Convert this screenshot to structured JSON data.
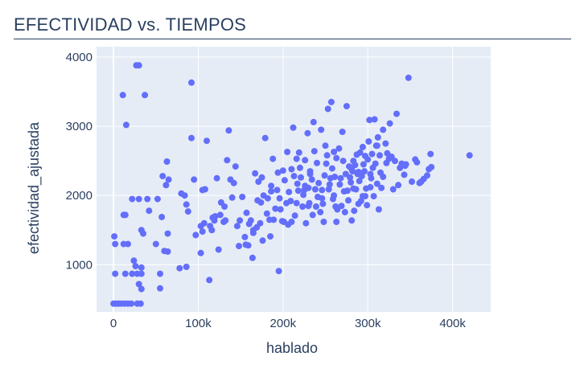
{
  "title": "EFECTIVIDAD vs. TIEMPOS",
  "colors": {
    "plot_bg": "#e5ecf6",
    "grid": "#ffffff",
    "marker": "#636efa",
    "text": "#2a3f5f"
  },
  "chart_data": {
    "type": "scatter",
    "xlabel": "hablado",
    "ylabel": "efectividad_ajustada",
    "xlim": [
      -20000,
      445000
    ],
    "ylim": [
      320,
      4150
    ],
    "xticks": [
      0,
      100000,
      200000,
      300000,
      400000
    ],
    "xtick_labels": [
      "0",
      "100k",
      "200k",
      "300k",
      "400k"
    ],
    "yticks": [
      1000,
      2000,
      3000,
      4000
    ],
    "ytick_labels": [
      "1000",
      "2000",
      "3000",
      "4000"
    ],
    "grid": true,
    "points": [
      [
        0,
        440
      ],
      [
        3000,
        440
      ],
      [
        6000,
        440
      ],
      [
        9000,
        440
      ],
      [
        13000,
        440
      ],
      [
        17000,
        440
      ],
      [
        21000,
        440
      ],
      [
        28000,
        440
      ],
      [
        32000,
        440
      ],
      [
        2000,
        870
      ],
      [
        14000,
        870
      ],
      [
        22000,
        870
      ],
      [
        28000,
        870
      ],
      [
        33000,
        870
      ],
      [
        33000,
        960
      ],
      [
        30000,
        720
      ],
      [
        33000,
        650
      ],
      [
        24000,
        1060
      ],
      [
        26000,
        980
      ],
      [
        2000,
        1300
      ],
      [
        12000,
        1300
      ],
      [
        17000,
        1300
      ],
      [
        1000,
        1410
      ],
      [
        12000,
        1720
      ],
      [
        14000,
        1720
      ],
      [
        22000,
        1950
      ],
      [
        30000,
        1950
      ],
      [
        33000,
        1500
      ],
      [
        35000,
        1450
      ],
      [
        52000,
        1950
      ],
      [
        50000,
        1300
      ],
      [
        55000,
        660
      ],
      [
        55000,
        870
      ],
      [
        57000,
        1690
      ],
      [
        60000,
        1200
      ],
      [
        64000,
        1190
      ],
      [
        62000,
        2150
      ],
      [
        58000,
        2280
      ],
      [
        65000,
        2230
      ],
      [
        63000,
        2490
      ],
      [
        64000,
        1450
      ],
      [
        78000,
        950
      ],
      [
        86000,
        970
      ],
      [
        80000,
        2030
      ],
      [
        84000,
        2000
      ],
      [
        86000,
        1870
      ],
      [
        92000,
        2830
      ],
      [
        95000,
        2230
      ],
      [
        97000,
        1430
      ],
      [
        103000,
        1170
      ],
      [
        105000,
        1480
      ],
      [
        107000,
        1600
      ],
      [
        105000,
        2080
      ],
      [
        108000,
        2090
      ],
      [
        110000,
        2790
      ],
      [
        113000,
        780
      ],
      [
        114000,
        1560
      ],
      [
        116000,
        1500
      ],
      [
        117000,
        1680
      ],
      [
        120000,
        1700
      ],
      [
        122000,
        2250
      ],
      [
        124000,
        1220
      ],
      [
        126000,
        1720
      ],
      [
        127000,
        1900
      ],
      [
        130000,
        1620
      ],
      [
        132000,
        1640
      ],
      [
        134000,
        2510
      ],
      [
        136000,
        2940
      ],
      [
        138000,
        2230
      ],
      [
        140000,
        1970
      ],
      [
        142000,
        2180
      ],
      [
        144000,
        2420
      ],
      [
        146000,
        1560
      ],
      [
        149000,
        1640
      ],
      [
        152000,
        1980
      ],
      [
        155000,
        1400
      ],
      [
        157000,
        1750
      ],
      [
        159000,
        1280
      ],
      [
        160000,
        1590
      ],
      [
        162000,
        1640
      ],
      [
        164000,
        1100
      ],
      [
        165000,
        1460
      ],
      [
        167000,
        2320
      ],
      [
        169000,
        1540
      ],
      [
        171000,
        2200
      ],
      [
        173000,
        1600
      ],
      [
        174000,
        1900
      ],
      [
        176000,
        1350
      ],
      [
        177000,
        2000
      ],
      [
        179000,
        2830
      ],
      [
        181000,
        1740
      ],
      [
        182000,
        1960
      ],
      [
        184000,
        1650
      ],
      [
        186000,
        2140
      ],
      [
        188000,
        2530
      ],
      [
        189000,
        1650
      ],
      [
        191000,
        1810
      ],
      [
        193000,
        2080
      ],
      [
        194000,
        2330
      ],
      [
        195000,
        910
      ],
      [
        196000,
        1960
      ],
      [
        197000,
        1800
      ],
      [
        199000,
        1630
      ],
      [
        200000,
        2360
      ],
      [
        201000,
        1620
      ],
      [
        202000,
        2220
      ],
      [
        204000,
        1890
      ],
      [
        205000,
        2630
      ],
      [
        206000,
        1580
      ],
      [
        207000,
        2050
      ],
      [
        209000,
        1920
      ],
      [
        210000,
        2380
      ],
      [
        212000,
        2980
      ],
      [
        213000,
        2280
      ],
      [
        214000,
        1710
      ],
      [
        216000,
        2530
      ],
      [
        217000,
        2170
      ],
      [
        218000,
        2070
      ],
      [
        219000,
        2620
      ],
      [
        220000,
        2400
      ],
      [
        221000,
        2260
      ],
      [
        223000,
        1840
      ],
      [
        224000,
        2010
      ],
      [
        225000,
        2080
      ],
      [
        226000,
        2510
      ],
      [
        227000,
        1600
      ],
      [
        229000,
        2900
      ],
      [
        230000,
        2110
      ],
      [
        231000,
        1890
      ],
      [
        232000,
        2350
      ],
      [
        234000,
        2230
      ],
      [
        235000,
        1720
      ],
      [
        236000,
        3060
      ],
      [
        237000,
        2640
      ],
      [
        238000,
        2090
      ],
      [
        239000,
        1840
      ],
      [
        240000,
        2470
      ],
      [
        241000,
        1980
      ],
      [
        242000,
        2180
      ],
      [
        244000,
        1760
      ],
      [
        245000,
        2950
      ],
      [
        246000,
        2080
      ],
      [
        247000,
        1880
      ],
      [
        248000,
        1620
      ],
      [
        249000,
        2290
      ],
      [
        250000,
        2720
      ],
      [
        251000,
        2460
      ],
      [
        252000,
        2580
      ],
      [
        253000,
        3250
      ],
      [
        254000,
        2090
      ],
      [
        256000,
        2250
      ],
      [
        257000,
        3350
      ],
      [
        258000,
        2390
      ],
      [
        259000,
        1950
      ],
      [
        260000,
        2630
      ],
      [
        261000,
        2270
      ],
      [
        262000,
        1840
      ],
      [
        263000,
        2540
      ],
      [
        264000,
        1800
      ],
      [
        266000,
        2680
      ],
      [
        267000,
        2160
      ],
      [
        268000,
        2250
      ],
      [
        269000,
        1850
      ],
      [
        270000,
        2920
      ],
      [
        271000,
        2500
      ],
      [
        272000,
        2060
      ],
      [
        273000,
        1760
      ],
      [
        274000,
        2310
      ],
      [
        275000,
        3290
      ],
      [
        276000,
        2070
      ],
      [
        277000,
        1930
      ],
      [
        278000,
        2420
      ],
      [
        279000,
        2260
      ],
      [
        280000,
        2190
      ],
      [
        281000,
        1640
      ],
      [
        282000,
        2350
      ],
      [
        283000,
        2500
      ],
      [
        284000,
        1780
      ],
      [
        285000,
        2440
      ],
      [
        286000,
        2090
      ],
      [
        287000,
        2590
      ],
      [
        288000,
        2310
      ],
      [
        289000,
        1880
      ],
      [
        290000,
        2210
      ],
      [
        291000,
        2620
      ],
      [
        292000,
        1920
      ],
      [
        293000,
        2280
      ],
      [
        294000,
        2700
      ],
      [
        295000,
        2450
      ],
      [
        296000,
        2350
      ],
      [
        297000,
        2570
      ],
      [
        298000,
        2100
      ],
      [
        299000,
        1860
      ],
      [
        300000,
        2520
      ],
      [
        301000,
        2780
      ],
      [
        302000,
        3090
      ],
      [
        303000,
        2120
      ],
      [
        304000,
        2250
      ],
      [
        305000,
        2600
      ],
      [
        306000,
        2400
      ],
      [
        307000,
        1990
      ],
      [
        308000,
        3100
      ],
      [
        309000,
        2460
      ],
      [
        310000,
        2720
      ],
      [
        311000,
        2170
      ],
      [
        312000,
        2840
      ],
      [
        313000,
        1800
      ],
      [
        314000,
        2580
      ],
      [
        315000,
        2330
      ],
      [
        318000,
        2950
      ],
      [
        321000,
        2750
      ],
      [
        323000,
        2610
      ],
      [
        326000,
        3040
      ],
      [
        328000,
        2560
      ],
      [
        330000,
        2090
      ],
      [
        332000,
        2500
      ],
      [
        334000,
        3180
      ],
      [
        336000,
        2150
      ],
      [
        338000,
        2400
      ],
      [
        340000,
        2460
      ],
      [
        343000,
        2300
      ],
      [
        345000,
        2450
      ],
      [
        348000,
        3700
      ],
      [
        352000,
        2200
      ],
      [
        356000,
        2520
      ],
      [
        358000,
        2480
      ],
      [
        361000,
        2180
      ],
      [
        363000,
        2200
      ],
      [
        366000,
        2240
      ],
      [
        370000,
        2290
      ],
      [
        372000,
        2380
      ],
      [
        374000,
        2600
      ],
      [
        375000,
        2410
      ],
      [
        420000,
        2580
      ],
      [
        148000,
        1270
      ],
      [
        165000,
        1500
      ],
      [
        175000,
        2260
      ],
      [
        186000,
        2060
      ],
      [
        210000,
        1620
      ],
      [
        230000,
        1850
      ],
      [
        260000,
        2000
      ],
      [
        263000,
        1620
      ],
      [
        281000,
        2380
      ],
      [
        294000,
        1990
      ],
      [
        297000,
        1990
      ],
      [
        311000,
        2720
      ],
      [
        318000,
        2270
      ],
      [
        322000,
        2470
      ],
      [
        11000,
        3450
      ],
      [
        15000,
        3020
      ],
      [
        27000,
        3880
      ],
      [
        30000,
        3880
      ],
      [
        37000,
        3450
      ],
      [
        92000,
        3630
      ],
      [
        40000,
        1950
      ],
      [
        42000,
        1780
      ],
      [
        88000,
        1770
      ],
      [
        103000,
        1560
      ],
      [
        119000,
        1640
      ],
      [
        131000,
        1840
      ],
      [
        156000,
        1290
      ],
      [
        170000,
        1930
      ],
      [
        185000,
        1410
      ],
      [
        216000,
        1890
      ],
      [
        226000,
        2140
      ],
      [
        232000,
        2310
      ],
      [
        246000,
        1960
      ],
      [
        255000,
        2160
      ],
      [
        283000,
        2100
      ],
      [
        289000,
        2340
      ],
      [
        303000,
        2310
      ],
      [
        316000,
        2110
      ],
      [
        325000,
        2530
      ],
      [
        344000,
        2430
      ]
    ]
  }
}
